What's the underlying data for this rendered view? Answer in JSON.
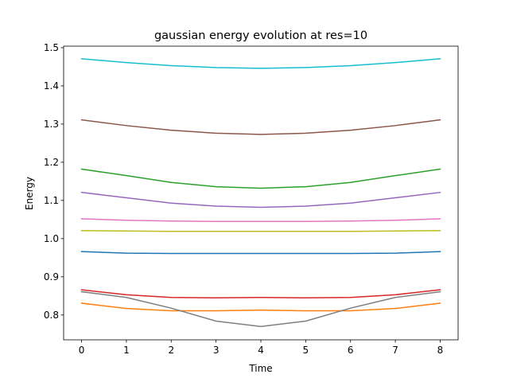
{
  "chart_data": {
    "type": "line",
    "title": "gaussian energy evolution at res=10",
    "xlabel": "Time",
    "ylabel": "Energy",
    "x": [
      0,
      1,
      2,
      3,
      4,
      5,
      6,
      7,
      8
    ],
    "xlim": [
      -0.4,
      8.4
    ],
    "ylim": [
      0.735,
      1.504
    ],
    "xticks": [
      0,
      1,
      2,
      3,
      4,
      5,
      6,
      7,
      8
    ],
    "yticks": [
      0.8,
      0.9,
      1.0,
      1.1,
      1.2,
      1.3,
      1.4,
      1.5
    ],
    "ytick_labels": [
      "0.8",
      "0.9",
      "1.0",
      "1.1",
      "1.2",
      "1.3",
      "1.4",
      "1.5"
    ],
    "grid": false,
    "legend": "none",
    "series": [
      {
        "color": "#1f77b4",
        "values": [
          0.966,
          0.962,
          0.961,
          0.961,
          0.961,
          0.961,
          0.961,
          0.962,
          0.966
        ]
      },
      {
        "color": "#ff7f0e",
        "values": [
          0.831,
          0.817,
          0.811,
          0.811,
          0.813,
          0.811,
          0.811,
          0.817,
          0.831
        ]
      },
      {
        "color": "#2ca02c",
        "values": [
          1.182,
          1.165,
          1.147,
          1.136,
          1.132,
          1.136,
          1.147,
          1.165,
          1.182
        ]
      },
      {
        "color": "#d62728",
        "values": [
          0.866,
          0.853,
          0.846,
          0.845,
          0.846,
          0.845,
          0.846,
          0.853,
          0.866
        ]
      },
      {
        "color": "#9467bd",
        "values": [
          1.121,
          1.107,
          1.093,
          1.085,
          1.082,
          1.085,
          1.093,
          1.107,
          1.121
        ]
      },
      {
        "color": "#8c564b",
        "values": [
          1.311,
          1.296,
          1.284,
          1.276,
          1.273,
          1.276,
          1.284,
          1.296,
          1.311
        ]
      },
      {
        "color": "#e377c2",
        "values": [
          1.052,
          1.048,
          1.046,
          1.045,
          1.045,
          1.045,
          1.046,
          1.048,
          1.052
        ]
      },
      {
        "color": "#7f7f7f",
        "values": [
          0.861,
          0.846,
          0.818,
          0.784,
          0.77,
          0.784,
          0.818,
          0.846,
          0.861
        ]
      },
      {
        "color": "#bcbd22",
        "values": [
          1.021,
          1.02,
          1.019,
          1.019,
          1.019,
          1.019,
          1.019,
          1.02,
          1.021
        ]
      },
      {
        "color": "#17becf",
        "values": [
          1.471,
          1.461,
          1.453,
          1.448,
          1.446,
          1.448,
          1.453,
          1.461,
          1.471
        ]
      }
    ]
  }
}
